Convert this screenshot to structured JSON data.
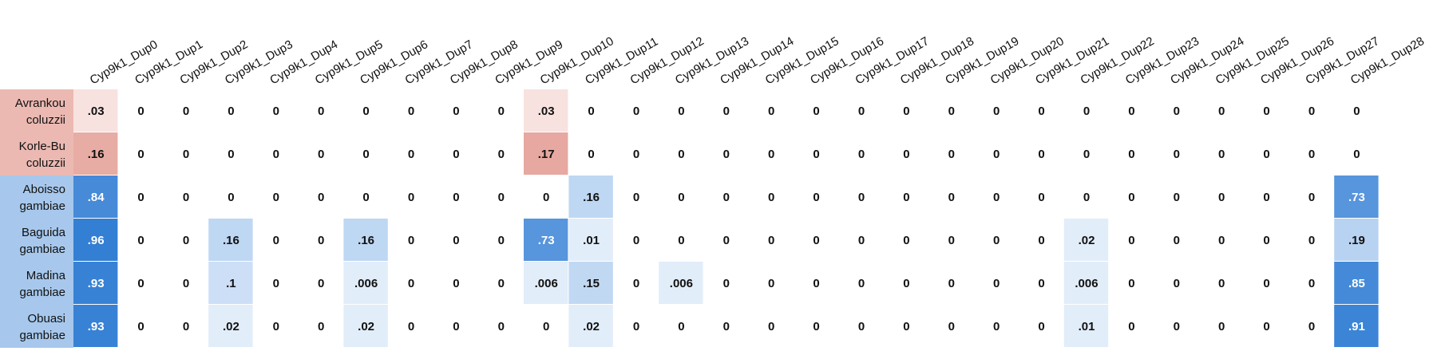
{
  "chart_data": {
    "type": "heatmap",
    "title": "",
    "xlabel": "",
    "ylabel": "",
    "columns": [
      "Cyp9k1_Dup0",
      "Cyp9k1_Dup1",
      "Cyp9k1_Dup2",
      "Cyp9k1_Dup3",
      "Cyp9k1_Dup4",
      "Cyp9k1_Dup5",
      "Cyp9k1_Dup6",
      "Cyp9k1_Dup7",
      "Cyp9k1_Dup8",
      "Cyp9k1_Dup9",
      "Cyp9k1_Dup10",
      "Cyp9k1_Dup11",
      "Cyp9k1_Dup12",
      "Cyp9k1_Dup13",
      "Cyp9k1_Dup14",
      "Cyp9k1_Dup15",
      "Cyp9k1_Dup16",
      "Cyp9k1_Dup17",
      "Cyp9k1_Dup18",
      "Cyp9k1_Dup19",
      "Cyp9k1_Dup20",
      "Cyp9k1_Dup21",
      "Cyp9k1_Dup22",
      "Cyp9k1_Dup23",
      "Cyp9k1_Dup24",
      "Cyp9k1_Dup25",
      "Cyp9k1_Dup26",
      "Cyp9k1_Dup27",
      "Cyp9k1_Dup28"
    ],
    "rows": [
      {
        "population": "Avrankou",
        "species": "coluzzii",
        "group": "coluzzii",
        "values": [
          0.03,
          0,
          0,
          0,
          0,
          0,
          0,
          0,
          0,
          0,
          0.03,
          0,
          0,
          0,
          0,
          0,
          0,
          0,
          0,
          0,
          0,
          0,
          0,
          0,
          0,
          0,
          0,
          0,
          0
        ],
        "labels": [
          ".03",
          "0",
          "0",
          "0",
          "0",
          "0",
          "0",
          "0",
          "0",
          "0",
          ".03",
          "0",
          "0",
          "0",
          "0",
          "0",
          "0",
          "0",
          "0",
          "0",
          "0",
          "0",
          "0",
          "0",
          "0",
          "0",
          "0",
          "0",
          "0"
        ]
      },
      {
        "population": "Korle-Bu",
        "species": "coluzzii",
        "group": "coluzzii",
        "values": [
          0.16,
          0,
          0,
          0,
          0,
          0,
          0,
          0,
          0,
          0,
          0.17,
          0,
          0,
          0,
          0,
          0,
          0,
          0,
          0,
          0,
          0,
          0,
          0,
          0,
          0,
          0,
          0,
          0,
          0
        ],
        "labels": [
          ".16",
          "0",
          "0",
          "0",
          "0",
          "0",
          "0",
          "0",
          "0",
          "0",
          ".17",
          "0",
          "0",
          "0",
          "0",
          "0",
          "0",
          "0",
          "0",
          "0",
          "0",
          "0",
          "0",
          "0",
          "0",
          "0",
          "0",
          "0",
          "0"
        ]
      },
      {
        "population": "Aboisso",
        "species": "gambiae",
        "group": "gambiae",
        "values": [
          0.84,
          0,
          0,
          0,
          0,
          0,
          0,
          0,
          0,
          0,
          0,
          0.16,
          0,
          0,
          0,
          0,
          0,
          0,
          0,
          0,
          0,
          0,
          0,
          0,
          0,
          0,
          0,
          0,
          0.73
        ],
        "labels": [
          ".84",
          "0",
          "0",
          "0",
          "0",
          "0",
          "0",
          "0",
          "0",
          "0",
          "0",
          ".16",
          "0",
          "0",
          "0",
          "0",
          "0",
          "0",
          "0",
          "0",
          "0",
          "0",
          "0",
          "0",
          "0",
          "0",
          "0",
          "0",
          ".73"
        ]
      },
      {
        "population": "Baguida",
        "species": "gambiae",
        "group": "gambiae",
        "values": [
          0.96,
          0,
          0,
          0.16,
          0,
          0,
          0.16,
          0,
          0,
          0,
          0.73,
          0.01,
          0,
          0,
          0,
          0,
          0,
          0,
          0,
          0,
          0,
          0,
          0.02,
          0,
          0,
          0,
          0,
          0,
          0.19
        ],
        "labels": [
          ".96",
          "0",
          "0",
          ".16",
          "0",
          "0",
          ".16",
          "0",
          "0",
          "0",
          ".73",
          ".01",
          "0",
          "0",
          "0",
          "0",
          "0",
          "0",
          "0",
          "0",
          "0",
          "0",
          ".02",
          "0",
          "0",
          "0",
          "0",
          "0",
          ".19"
        ]
      },
      {
        "population": "Madina",
        "species": "gambiae",
        "group": "gambiae",
        "values": [
          0.93,
          0,
          0,
          0.1,
          0,
          0,
          0.006,
          0,
          0,
          0,
          0.006,
          0.15,
          0,
          0.006,
          0,
          0,
          0,
          0,
          0,
          0,
          0,
          0,
          0.006,
          0,
          0,
          0,
          0,
          0,
          0.85
        ],
        "labels": [
          ".93",
          "0",
          "0",
          ".1",
          "0",
          "0",
          ".006",
          "0",
          "0",
          "0",
          ".006",
          ".15",
          "0",
          ".006",
          "0",
          "0",
          "0",
          "0",
          "0",
          "0",
          "0",
          "0",
          ".006",
          "0",
          "0",
          "0",
          "0",
          "0",
          ".85"
        ]
      },
      {
        "population": "Obuasi",
        "species": "gambiae",
        "group": "gambiae",
        "values": [
          0.93,
          0,
          0,
          0.02,
          0,
          0,
          0.02,
          0,
          0,
          0,
          0,
          0.02,
          0,
          0,
          0,
          0,
          0,
          0,
          0,
          0,
          0,
          0,
          0.01,
          0,
          0,
          0,
          0,
          0,
          0.91
        ],
        "labels": [
          ".93",
          "0",
          "0",
          ".02",
          "0",
          "0",
          ".02",
          "0",
          "0",
          "0",
          "0",
          ".02",
          "0",
          "0",
          "0",
          "0",
          "0",
          "0",
          "0",
          "0",
          "0",
          "0",
          ".01",
          "0",
          "0",
          "0",
          "0",
          "0",
          ".91"
        ]
      }
    ],
    "colors": {
      "coluzzii_label_bg": "#ebb9b2",
      "gambiae_label_bg": "#a7c8ec",
      "coluzzii_scale_low": "#fbeeec",
      "coluzzii_scale_high": "#e6a8a0",
      "gambiae_scale_low": "#eaf2fc",
      "gambiae_scale_high": "#2d7bd3",
      "zero_bg": "#ffffff",
      "text_dark": "#111111",
      "text_light": "#ffffff"
    },
    "grid": false,
    "legend": "none"
  }
}
